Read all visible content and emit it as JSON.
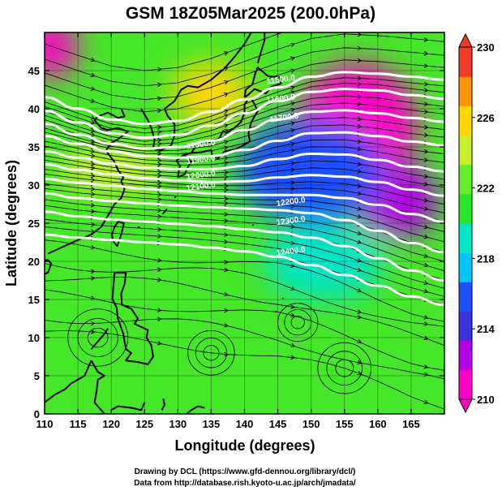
{
  "chart_data": {
    "type": "heatmap",
    "title": "GSM 18Z05Mar2025 (200.0hPa)",
    "xlabel": "Longitude (degrees)",
    "ylabel": "Latitude  (degrees)",
    "xlim": [
      110,
      170
    ],
    "ylim": [
      0,
      50
    ],
    "x_ticks": [
      110,
      115,
      120,
      125,
      130,
      135,
      140,
      145,
      150,
      155,
      160,
      165
    ],
    "y_ticks": [
      0,
      5,
      10,
      15,
      20,
      25,
      30,
      35,
      40,
      45
    ],
    "colorbar": {
      "range": [
        210,
        230
      ],
      "ticks": [
        210,
        214,
        218,
        222,
        226,
        230
      ],
      "colors": [
        "#ff00c8",
        "#b400e6",
        "#3c32dc",
        "#1e50ff",
        "#00c8ff",
        "#00e6c8",
        "#28e628",
        "#64f028",
        "#c8f028",
        "#ffd700",
        "#ff9600",
        "#f03c28"
      ]
    },
    "field_description": "temperature shading with geopotential height contours (m) and wind streamlines",
    "contour_labels": [
      {
        "text": "11500.0",
        "lon": 145.5,
        "lat": 43.5
      },
      {
        "text": "11600.0",
        "lon": 145.5,
        "lat": 41.0
      },
      {
        "text": "11700.0",
        "lon": 146.0,
        "lat": 38.5
      },
      {
        "text": "11800.0",
        "lon": 133.5,
        "lat": 35.0
      },
      {
        "text": "11900.0",
        "lon": 133.5,
        "lat": 33.0
      },
      {
        "text": "12000.0",
        "lon": 133.5,
        "lat": 31.0
      },
      {
        "text": "12100.0",
        "lon": 133.5,
        "lat": 29.5
      },
      {
        "text": "12200.0",
        "lon": 147.0,
        "lat": 27.5
      },
      {
        "text": "12300.0",
        "lon": 147.0,
        "lat": 25.0
      },
      {
        "text": "12400.0",
        "lon": 147.0,
        "lat": 21.0
      }
    ],
    "contour_lines": [
      [
        [
          110,
          41.5
        ],
        [
          115,
          40
        ],
        [
          120,
          38.6
        ],
        [
          125,
          38
        ],
        [
          130,
          38.4
        ],
        [
          135,
          39.6
        ],
        [
          140,
          41.2
        ],
        [
          145,
          42.8
        ],
        [
          150,
          44.2
        ],
        [
          155,
          44.8
        ],
        [
          160,
          44.6
        ],
        [
          165,
          44.2
        ],
        [
          170,
          43.8
        ]
      ],
      [
        [
          110,
          39.7
        ],
        [
          115,
          38.2
        ],
        [
          120,
          36.8
        ],
        [
          125,
          36.2
        ],
        [
          130,
          36.6
        ],
        [
          135,
          37.8
        ],
        [
          140,
          39.4
        ],
        [
          145,
          41
        ],
        [
          150,
          42.2
        ],
        [
          155,
          42.6
        ],
        [
          160,
          42.4
        ],
        [
          165,
          41.8
        ],
        [
          170,
          41.3
        ]
      ],
      [
        [
          110,
          38
        ],
        [
          115,
          36.6
        ],
        [
          120,
          35.4
        ],
        [
          125,
          34.8
        ],
        [
          130,
          35
        ],
        [
          135,
          35.8
        ],
        [
          140,
          37.2
        ],
        [
          145,
          38.6
        ],
        [
          150,
          39.6
        ],
        [
          155,
          39.8
        ],
        [
          160,
          39.4
        ],
        [
          165,
          38.8
        ],
        [
          170,
          38.3
        ]
      ],
      [
        [
          110,
          36.4
        ],
        [
          115,
          35.4
        ],
        [
          120,
          34.4
        ],
        [
          125,
          33.8
        ],
        [
          130,
          33.6
        ],
        [
          135,
          33.8
        ],
        [
          140,
          34.6
        ],
        [
          145,
          35.8
        ],
        [
          150,
          36.8
        ],
        [
          155,
          36.9
        ],
        [
          160,
          36.4
        ],
        [
          165,
          35.7
        ],
        [
          170,
          35.2
        ]
      ],
      [
        [
          110,
          34.4
        ],
        [
          115,
          33.6
        ],
        [
          120,
          32.8
        ],
        [
          125,
          32.3
        ],
        [
          130,
          32.1
        ],
        [
          135,
          32.1
        ],
        [
          140,
          32.5
        ],
        [
          145,
          33.4
        ],
        [
          150,
          34.1
        ],
        [
          155,
          34
        ],
        [
          160,
          33.3
        ],
        [
          165,
          32.4
        ],
        [
          170,
          31.8
        ]
      ],
      [
        [
          110,
          32.7
        ],
        [
          115,
          32
        ],
        [
          120,
          31.4
        ],
        [
          125,
          30.9
        ],
        [
          130,
          30.6
        ],
        [
          135,
          30.4
        ],
        [
          140,
          30.5
        ],
        [
          145,
          31
        ],
        [
          150,
          31.3
        ],
        [
          155,
          31.1
        ],
        [
          160,
          30.4
        ],
        [
          165,
          29.4
        ],
        [
          170,
          28.6
        ]
      ],
      [
        [
          110,
          30.8
        ],
        [
          115,
          30.3
        ],
        [
          120,
          29.9
        ],
        [
          125,
          29.5
        ],
        [
          130,
          29.2
        ],
        [
          135,
          28.9
        ],
        [
          140,
          28.7
        ],
        [
          145,
          28.7
        ],
        [
          150,
          28.7
        ],
        [
          155,
          28.3
        ],
        [
          160,
          27.4
        ],
        [
          165,
          26.2
        ],
        [
          170,
          25.2
        ]
      ],
      [
        [
          110,
          28.9
        ],
        [
          115,
          28.3
        ],
        [
          120,
          27.9
        ],
        [
          125,
          27.6
        ],
        [
          130,
          27.3
        ],
        [
          135,
          27.1
        ],
        [
          140,
          26.9
        ],
        [
          145,
          26.7
        ],
        [
          150,
          26.3
        ],
        [
          155,
          25.4
        ],
        [
          160,
          24
        ],
        [
          165,
          22.4
        ],
        [
          170,
          21.2
        ]
      ],
      [
        [
          110,
          26.5
        ],
        [
          115,
          25.9
        ],
        [
          120,
          25.5
        ],
        [
          125,
          25.2
        ],
        [
          130,
          24.9
        ],
        [
          135,
          24.6
        ],
        [
          140,
          24.2
        ],
        [
          145,
          23.8
        ],
        [
          150,
          23.1
        ],
        [
          155,
          22
        ],
        [
          160,
          20.4
        ],
        [
          165,
          18.8
        ],
        [
          170,
          17.5
        ]
      ],
      [
        [
          110,
          23.5
        ],
        [
          115,
          23.1
        ],
        [
          120,
          22.8
        ],
        [
          125,
          22.5
        ],
        [
          130,
          22.2
        ],
        [
          135,
          21.8
        ],
        [
          140,
          21.3
        ],
        [
          145,
          20.6
        ],
        [
          150,
          19.5
        ],
        [
          155,
          18.2
        ],
        [
          160,
          16.8
        ],
        [
          165,
          15.4
        ],
        [
          170,
          14.3
        ]
      ]
    ],
    "temperature_regions": [
      {
        "label": "cold-pool-east",
        "lon": 157,
        "lat": 38,
        "value": 211,
        "rx": 9,
        "ry": 8
      },
      {
        "label": "cold-lobe-south",
        "lon": 163,
        "lat": 28,
        "value": 212,
        "rx": 6,
        "ry": 5
      },
      {
        "label": "cold-corner-nw",
        "lon": 111,
        "lat": 48,
        "value": 211,
        "rx": 4,
        "ry": 4
      },
      {
        "label": "cool-band",
        "lon": 150,
        "lat": 32,
        "value": 216,
        "rx": 11,
        "ry": 7
      },
      {
        "label": "cyan-trough",
        "lon": 152,
        "lat": 20,
        "value": 219,
        "rx": 9,
        "ry": 5
      },
      {
        "label": "warm-japan",
        "lon": 135,
        "lat": 42,
        "value": 225,
        "rx": 6,
        "ry": 4
      },
      {
        "label": "warm-china",
        "lon": 120,
        "lat": 32,
        "value": 224,
        "rx": 8,
        "ry": 3
      }
    ],
    "credits": [
      "Drawing by DCL (https://www.gfd-dennou.org/library/dcl/)",
      "Data from http://database.rish.kyoto-u.ac.jp/arch/jmadata/"
    ]
  }
}
